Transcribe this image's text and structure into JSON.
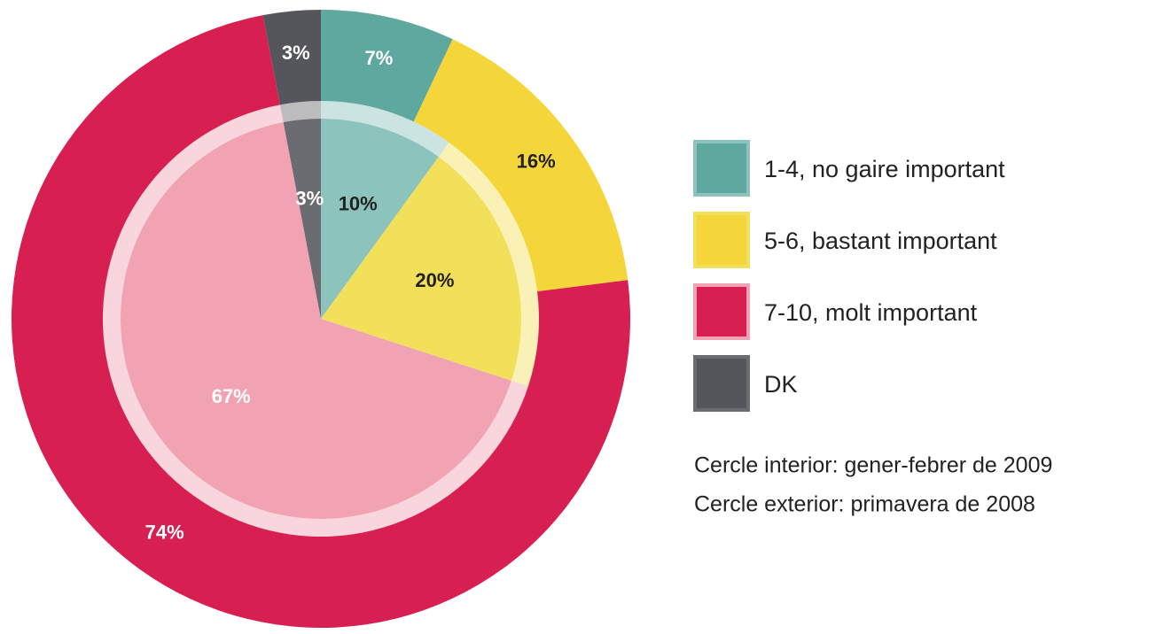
{
  "chart_data": {
    "type": "pie",
    "categories": [
      "1-4, no gaire important",
      "5-6, bastant important",
      "7-10, molt important",
      "DK"
    ],
    "series": [
      {
        "name": "Cercle interior: gener-febrer de 2009",
        "colors": [
          "#8cc3bc",
          "#f2e05a",
          "#f2a3b3",
          "#6b6b72"
        ],
        "label_colors": [
          "#222222",
          "#222222",
          "#ffffff",
          "#ffffff"
        ],
        "values": [
          10,
          20,
          67,
          3
        ],
        "value_labels": [
          "10%",
          "20%",
          "67%",
          "3%"
        ]
      },
      {
        "name": "Cercle exterior: primavera de 2008",
        "colors": [
          "#5fa8a0",
          "#f4d63a",
          "#d81f52",
          "#55565c"
        ],
        "label_colors": [
          "#ffffff",
          "#222222",
          "#ffffff",
          "#ffffff"
        ],
        "values": [
          7,
          16,
          74,
          3
        ],
        "value_labels": [
          "7%",
          "16%",
          "74%",
          "3%"
        ]
      }
    ],
    "legend": "right"
  }
}
